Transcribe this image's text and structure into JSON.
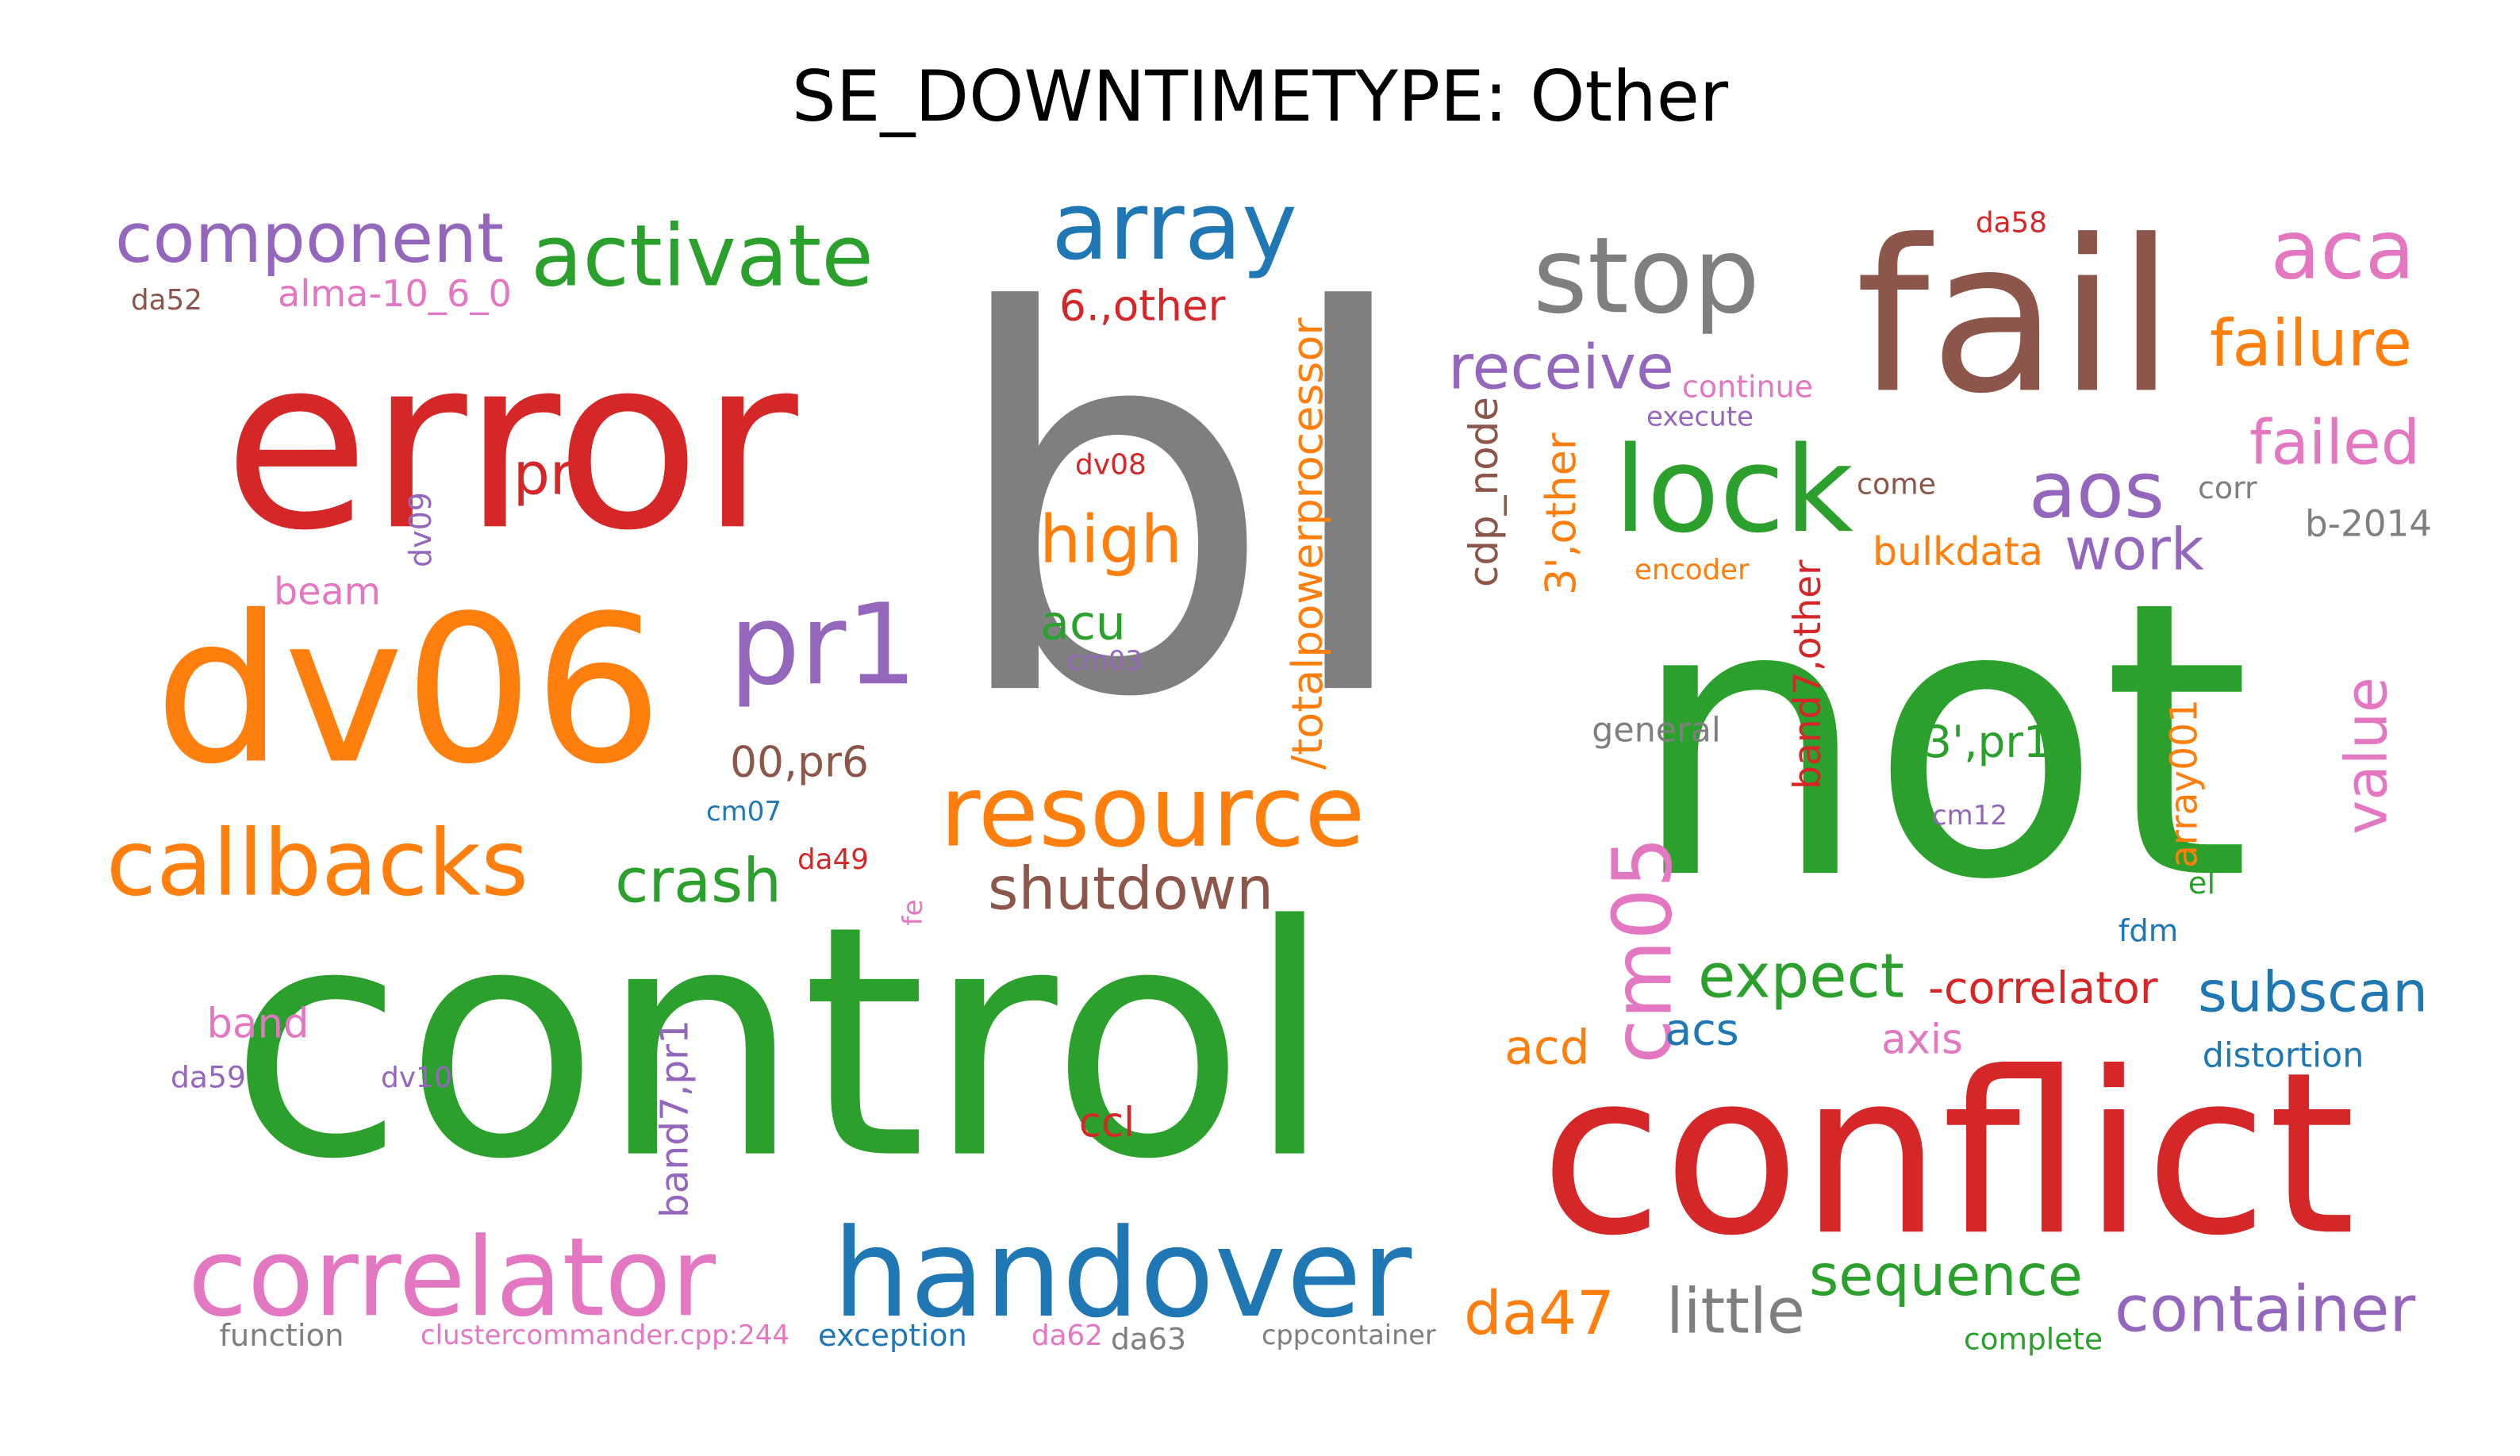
{
  "title": "SE_DOWNTIMETYPE: Other",
  "palette": {
    "red": "#d62728",
    "green": "#2ca02c",
    "gray": "#7f7f7f",
    "brown": "#8c564b",
    "orange": "#ff7f0e",
    "purple": "#9467bd",
    "blue": "#1f77b4",
    "pink": "#e377c2"
  },
  "words": [
    {
      "text": "bl",
      "color": "gray"
    },
    {
      "text": "not",
      "color": "green"
    },
    {
      "text": "control",
      "color": "green"
    },
    {
      "text": "error",
      "color": "red"
    },
    {
      "text": "conflict",
      "color": "red"
    },
    {
      "text": "fail",
      "color": "brown"
    },
    {
      "text": "dv06",
      "color": "orange"
    },
    {
      "text": "lock",
      "color": "green"
    },
    {
      "text": "handover",
      "color": "blue"
    },
    {
      "text": "correlator",
      "color": "pink"
    },
    {
      "text": "pr1",
      "color": "purple"
    },
    {
      "text": "stop",
      "color": "gray"
    },
    {
      "text": "resource",
      "color": "orange"
    },
    {
      "text": "array",
      "color": "blue"
    },
    {
      "text": "activate",
      "color": "green"
    },
    {
      "text": "aca",
      "color": "pink"
    },
    {
      "text": "callbacks",
      "color": "orange"
    },
    {
      "text": "cm05",
      "color": "pink"
    },
    {
      "text": "aos",
      "color": "purple"
    },
    {
      "text": "component",
      "color": "purple"
    },
    {
      "text": "da47",
      "color": "orange"
    },
    {
      "text": "container",
      "color": "purple"
    },
    {
      "text": "receive",
      "color": "purple"
    },
    {
      "text": "failure",
      "color": "orange"
    },
    {
      "text": "failed",
      "color": "pink"
    },
    {
      "text": "high",
      "color": "orange"
    },
    {
      "text": "shutdown",
      "color": "brown"
    },
    {
      "text": "crash",
      "color": "green"
    },
    {
      "text": "expect",
      "color": "green"
    },
    {
      "text": "subscan",
      "color": "blue"
    },
    {
      "text": "little",
      "color": "gray"
    },
    {
      "text": "sequence",
      "color": "green"
    },
    {
      "text": "work",
      "color": "purple"
    },
    {
      "text": "pr",
      "color": "red"
    },
    {
      "text": "/totalpowerprocessor",
      "color": "orange"
    },
    {
      "text": "value",
      "color": "pink"
    },
    {
      "text": "-correlator",
      "color": "red"
    },
    {
      "text": "6.,other",
      "color": "red"
    },
    {
      "text": "00,pr6",
      "color": "brown"
    },
    {
      "text": "3',other",
      "color": "orange"
    },
    {
      "text": "3',pr1",
      "color": "green"
    },
    {
      "text": "band7,other",
      "color": "red"
    },
    {
      "text": "band7,pr1",
      "color": "purple"
    },
    {
      "text": "acu",
      "color": "green"
    },
    {
      "text": "acs",
      "color": "blue"
    },
    {
      "text": "acd",
      "color": "orange"
    },
    {
      "text": "alma-10_6_0",
      "color": "pink"
    },
    {
      "text": "cdp_node",
      "color": "brown"
    },
    {
      "text": "bulkdata",
      "color": "orange"
    },
    {
      "text": "beam",
      "color": "pink"
    },
    {
      "text": "band",
      "color": "pink"
    },
    {
      "text": "axis",
      "color": "pink"
    },
    {
      "text": "array001",
      "color": "orange"
    },
    {
      "text": "ccl",
      "color": "red"
    },
    {
      "text": "b-2014",
      "color": "gray"
    },
    {
      "text": "clustercommander.cpp:244",
      "color": "pink"
    },
    {
      "text": "distortion",
      "color": "blue"
    },
    {
      "text": "exception",
      "color": "blue"
    },
    {
      "text": "function",
      "color": "gray"
    },
    {
      "text": "cppcontainer",
      "color": "gray"
    },
    {
      "text": "complete",
      "color": "green"
    },
    {
      "text": "general",
      "color": "gray"
    },
    {
      "text": "continue",
      "color": "pink"
    },
    {
      "text": "execute",
      "color": "purple"
    },
    {
      "text": "encoder",
      "color": "orange"
    },
    {
      "text": "come",
      "color": "brown"
    },
    {
      "text": "corr",
      "color": "gray"
    },
    {
      "text": "da58",
      "color": "red"
    },
    {
      "text": "da52",
      "color": "brown"
    },
    {
      "text": "dv08",
      "color": "red"
    },
    {
      "text": "dv09",
      "color": "purple"
    },
    {
      "text": "cm03",
      "color": "purple"
    },
    {
      "text": "cm07",
      "color": "blue"
    },
    {
      "text": "da49",
      "color": "red"
    },
    {
      "text": "fe",
      "color": "pink"
    },
    {
      "text": "cm12",
      "color": "purple"
    },
    {
      "text": "el",
      "color": "green"
    },
    {
      "text": "fdm",
      "color": "blue"
    },
    {
      "text": "da59",
      "color": "purple"
    },
    {
      "text": "dv10",
      "color": "purple"
    },
    {
      "text": "da62",
      "color": "pink"
    },
    {
      "text": "da63",
      "color": "gray"
    }
  ]
}
